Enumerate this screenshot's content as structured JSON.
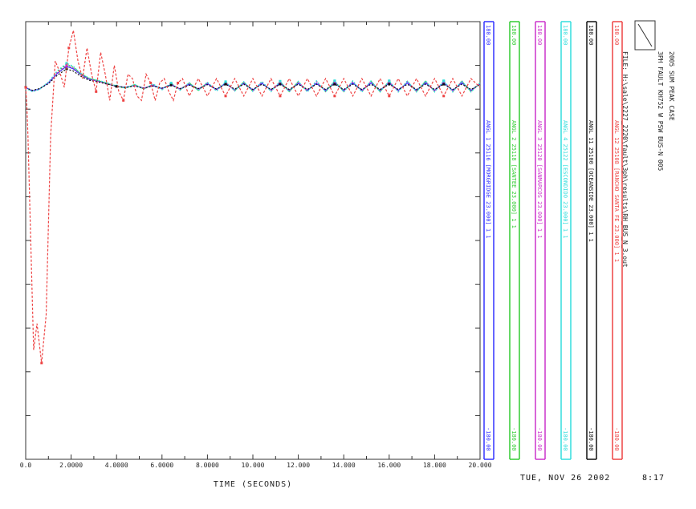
{
  "chart_data": {
    "type": "line",
    "xlabel": "TIME (SECONDS)",
    "xlim": [
      0,
      20
    ],
    "x_ticks": [
      {
        "value": 0,
        "label": "0.0"
      },
      {
        "value": 2,
        "label": "2.0000"
      },
      {
        "value": 4,
        "label": "4.0000"
      },
      {
        "value": 6,
        "label": "6.0000"
      },
      {
        "value": 8,
        "label": "8.0000"
      },
      {
        "value": 10,
        "label": "10.000"
      },
      {
        "value": 12,
        "label": "12.000"
      },
      {
        "value": 14,
        "label": "14.000"
      },
      {
        "value": 16,
        "label": "16.000"
      },
      {
        "value": 18,
        "label": "18.000"
      },
      {
        "value": 20,
        "label": "20.000"
      }
    ],
    "header": {
      "title": "2005 SUM PEAK CASE",
      "subtitle": "3PH FAULT KH752 W PSW BUS-N 005",
      "file": "FILE: H:\\sale\\2227_2220\\fault\\3ph\\results\\RH_BUS_N_3.out"
    },
    "series": [
      {
        "name": "ANGL 1 25116 [MORGRIDGE 23.000] 1 1",
        "color": "#3333ff",
        "scale": {
          "max": "180.00",
          "min": "-180.00"
        },
        "t": [
          0,
          0.15,
          0.3,
          0.6,
          1.0,
          1.4,
          1.8,
          2.1,
          2.4,
          2.8,
          3.2,
          3.6,
          4.0,
          4.4,
          4.8,
          5.2,
          5.6,
          6.0,
          6.4,
          6.8,
          7.2,
          7.6,
          8.0,
          8.4,
          8.8,
          9.2,
          9.6,
          10.0,
          10.4,
          10.8,
          11.2,
          11.6,
          12.0,
          12.4,
          12.8,
          13.2,
          13.6,
          14.0,
          14.4,
          14.8,
          15.2,
          15.6,
          16.0,
          16.4,
          16.8,
          17.2,
          17.6,
          18.0,
          18.4,
          18.8,
          19.2,
          19.6,
          20.0
        ],
        "y": [
          0.0,
          -0.05,
          -0.08,
          -0.04,
          0.1,
          0.32,
          0.48,
          0.42,
          0.3,
          0.18,
          0.14,
          0.08,
          0.02,
          0.0,
          0.04,
          -0.02,
          0.04,
          -0.03,
          0.06,
          -0.04,
          0.07,
          -0.04,
          0.08,
          -0.05,
          0.09,
          -0.06,
          0.09,
          -0.06,
          0.09,
          -0.06,
          0.09,
          -0.07,
          0.09,
          -0.07,
          0.09,
          -0.07,
          0.1,
          -0.07,
          0.1,
          -0.07,
          0.1,
          -0.07,
          0.1,
          -0.07,
          0.1,
          -0.07,
          0.1,
          -0.07,
          0.1,
          -0.07,
          0.1,
          -0.07,
          0.08
        ]
      },
      {
        "name": "ANGL 2 25118 [SANTEE 23.000] 1 1",
        "color": "#33cc33",
        "scale": {
          "max": "180.00",
          "min": "-180.00"
        },
        "t": [
          0,
          0.15,
          0.3,
          0.6,
          1.0,
          1.4,
          1.8,
          2.1,
          2.4,
          2.8,
          3.2,
          3.6,
          4.0,
          4.4,
          4.8,
          5.2,
          5.6,
          6.0,
          6.4,
          6.8,
          7.2,
          7.6,
          8.0,
          8.4,
          8.8,
          9.2,
          9.6,
          10.0,
          10.4,
          10.8,
          11.2,
          11.6,
          12.0,
          12.4,
          12.8,
          13.2,
          13.6,
          14.0,
          14.4,
          14.8,
          15.2,
          15.6,
          16.0,
          16.4,
          16.8,
          17.2,
          17.6,
          18.0,
          18.4,
          18.8,
          19.2,
          19.6,
          20.0
        ],
        "y": [
          0.0,
          -0.06,
          -0.1,
          -0.05,
          0.12,
          0.36,
          0.52,
          0.46,
          0.32,
          0.2,
          0.15,
          0.09,
          0.02,
          -0.02,
          0.06,
          -0.04,
          0.07,
          -0.05,
          0.09,
          -0.06,
          0.1,
          -0.07,
          0.11,
          -0.08,
          0.12,
          -0.08,
          0.12,
          -0.09,
          0.13,
          -0.09,
          0.13,
          -0.1,
          0.13,
          -0.1,
          0.14,
          -0.1,
          0.14,
          -0.1,
          0.14,
          -0.1,
          0.14,
          -0.1,
          0.14,
          -0.1,
          0.14,
          -0.1,
          0.14,
          -0.1,
          0.14,
          -0.1,
          0.14,
          -0.1,
          0.1
        ]
      },
      {
        "name": "ANGL 3 25120 [SANMARCOS 23.000] 1 1",
        "color": "#cc33cc",
        "scale": {
          "max": "180.00",
          "min": "-180.00"
        },
        "t": [
          0,
          0.15,
          0.3,
          0.6,
          1.0,
          1.4,
          1.8,
          2.1,
          2.4,
          2.8,
          3.2,
          3.6,
          4.0,
          4.4,
          4.8,
          5.2,
          5.6,
          6.0,
          6.4,
          6.8,
          7.2,
          7.6,
          8.0,
          8.4,
          8.8,
          9.2,
          9.6,
          10.0,
          10.4,
          10.8,
          11.2,
          11.6,
          12.0,
          12.4,
          12.8,
          13.2,
          13.6,
          14.0,
          14.4,
          14.8,
          15.2,
          15.6,
          16.0,
          16.4,
          16.8,
          17.2,
          17.6,
          18.0,
          18.4,
          18.8,
          19.2,
          19.6,
          20.0
        ],
        "y": [
          0.0,
          -0.05,
          -0.09,
          -0.05,
          0.11,
          0.34,
          0.5,
          0.44,
          0.31,
          0.19,
          0.14,
          0.08,
          0.02,
          -0.01,
          0.05,
          -0.03,
          0.06,
          -0.04,
          0.08,
          -0.05,
          0.09,
          -0.06,
          0.1,
          -0.07,
          0.11,
          -0.07,
          0.11,
          -0.08,
          0.12,
          -0.08,
          0.12,
          -0.09,
          0.12,
          -0.09,
          0.13,
          -0.09,
          0.13,
          -0.09,
          0.13,
          -0.09,
          0.13,
          -0.09,
          0.13,
          -0.09,
          0.13,
          -0.09,
          0.13,
          -0.09,
          0.13,
          -0.09,
          0.13,
          -0.09,
          0.09
        ]
      },
      {
        "name": "ANGL 4 25122 [ESCONDIDO 23.000] 1 1",
        "color": "#33dddd",
        "scale": {
          "max": "180.00",
          "min": "-180.00"
        },
        "t": [
          0,
          0.15,
          0.3,
          0.6,
          1.0,
          1.4,
          1.8,
          2.1,
          2.4,
          2.8,
          3.2,
          3.6,
          4.0,
          4.4,
          4.8,
          5.2,
          5.6,
          6.0,
          6.4,
          6.8,
          7.2,
          7.6,
          8.0,
          8.4,
          8.8,
          9.2,
          9.6,
          10.0,
          10.4,
          10.8,
          11.2,
          11.6,
          12.0,
          12.4,
          12.8,
          13.2,
          13.6,
          14.0,
          14.4,
          14.8,
          15.2,
          15.6,
          16.0,
          16.4,
          16.8,
          17.2,
          17.6,
          18.0,
          18.4,
          18.8,
          19.2,
          19.6,
          20.0
        ],
        "y": [
          0.0,
          -0.06,
          -0.1,
          -0.05,
          0.12,
          0.38,
          0.55,
          0.48,
          0.33,
          0.21,
          0.16,
          0.1,
          0.03,
          -0.02,
          0.07,
          -0.05,
          0.08,
          -0.06,
          0.1,
          -0.07,
          0.11,
          -0.08,
          0.12,
          -0.09,
          0.13,
          -0.09,
          0.13,
          -0.1,
          0.14,
          -0.1,
          0.14,
          -0.11,
          0.14,
          -0.11,
          0.15,
          -0.11,
          0.15,
          -0.11,
          0.15,
          -0.11,
          0.15,
          -0.11,
          0.15,
          -0.11,
          0.15,
          -0.11,
          0.15,
          -0.11,
          0.15,
          -0.11,
          0.15,
          -0.11,
          0.1
        ]
      },
      {
        "name": "ANGL 11 25100 [OCEANSIDE 23.000] 1 1",
        "color": "#111111",
        "scale": {
          "max": "180.00",
          "min": "-180.00"
        },
        "t": [
          0,
          0.15,
          0.3,
          0.6,
          1.0,
          1.4,
          1.8,
          2.1,
          2.4,
          2.8,
          3.2,
          3.6,
          4.0,
          4.4,
          4.8,
          5.2,
          5.6,
          6.0,
          6.4,
          6.8,
          7.2,
          7.6,
          8.0,
          8.4,
          8.8,
          9.2,
          9.6,
          10.0,
          10.4,
          10.8,
          11.2,
          11.6,
          12.0,
          12.4,
          12.8,
          13.2,
          13.6,
          14.0,
          14.4,
          14.8,
          15.2,
          15.6,
          16.0,
          16.4,
          16.8,
          17.2,
          17.6,
          18.0,
          18.4,
          18.8,
          19.2,
          19.6,
          20.0
        ],
        "y": [
          0.0,
          -0.04,
          -0.07,
          -0.03,
          0.08,
          0.28,
          0.42,
          0.37,
          0.26,
          0.16,
          0.12,
          0.07,
          0.02,
          0.0,
          0.03,
          -0.02,
          0.03,
          -0.02,
          0.05,
          -0.03,
          0.05,
          -0.03,
          0.06,
          -0.04,
          0.07,
          -0.04,
          0.07,
          -0.05,
          0.07,
          -0.05,
          0.07,
          -0.05,
          0.07,
          -0.05,
          0.07,
          -0.05,
          0.07,
          -0.05,
          0.07,
          -0.05,
          0.07,
          -0.05,
          0.07,
          -0.05,
          0.07,
          -0.05,
          0.07,
          -0.05,
          0.07,
          -0.05,
          0.07,
          -0.05,
          0.06
        ]
      },
      {
        "name": "ANGL 12 25108 [RANCHO SANTA FE 23.000] 1 1",
        "color": "#ee4444",
        "scale": {
          "max": "180.00",
          "min": "-180.00"
        },
        "t": [
          0,
          0.05,
          0.1,
          0.2,
          0.35,
          0.5,
          0.7,
          0.9,
          1.1,
          1.3,
          1.5,
          1.7,
          1.9,
          2.1,
          2.3,
          2.5,
          2.7,
          2.9,
          3.1,
          3.3,
          3.5,
          3.7,
          3.9,
          4.1,
          4.3,
          4.5,
          4.7,
          4.9,
          5.1,
          5.3,
          5.5,
          5.7,
          5.9,
          6.1,
          6.3,
          6.5,
          6.7,
          6.9,
          7.2,
          7.6,
          8.0,
          8.4,
          8.8,
          9.2,
          9.6,
          10.0,
          10.4,
          10.8,
          11.2,
          11.6,
          12.0,
          12.4,
          12.8,
          13.2,
          13.6,
          14.0,
          14.4,
          14.8,
          15.2,
          15.6,
          16.0,
          16.4,
          16.8,
          17.2,
          17.6,
          18.0,
          18.4,
          18.8,
          19.2,
          19.6,
          20.0
        ],
        "y": [
          0.0,
          -0.4,
          -1.1,
          -3.1,
          -6.0,
          -5.4,
          -6.3,
          -5.2,
          -1.1,
          0.6,
          0.35,
          0.0,
          0.9,
          1.3,
          0.6,
          0.2,
          0.9,
          0.3,
          -0.1,
          0.8,
          0.3,
          -0.3,
          0.5,
          -0.1,
          -0.3,
          0.3,
          0.2,
          -0.2,
          -0.3,
          0.3,
          0.1,
          -0.3,
          0.1,
          0.2,
          -0.1,
          -0.3,
          0.1,
          0.2,
          -0.2,
          0.2,
          -0.2,
          0.2,
          -0.2,
          0.2,
          -0.2,
          0.2,
          -0.2,
          0.2,
          -0.2,
          0.2,
          -0.2,
          0.2,
          -0.2,
          0.2,
          -0.2,
          0.2,
          -0.2,
          0.2,
          -0.2,
          0.2,
          -0.2,
          0.2,
          -0.2,
          0.2,
          -0.2,
          0.2,
          -0.2,
          0.2,
          -0.2,
          0.2,
          0.0
        ]
      }
    ]
  },
  "footer": {
    "date": "TUE, NOV 26 2002",
    "time": "8:17"
  },
  "colors": {
    "axis": "#333333",
    "background": "#ffffff"
  }
}
